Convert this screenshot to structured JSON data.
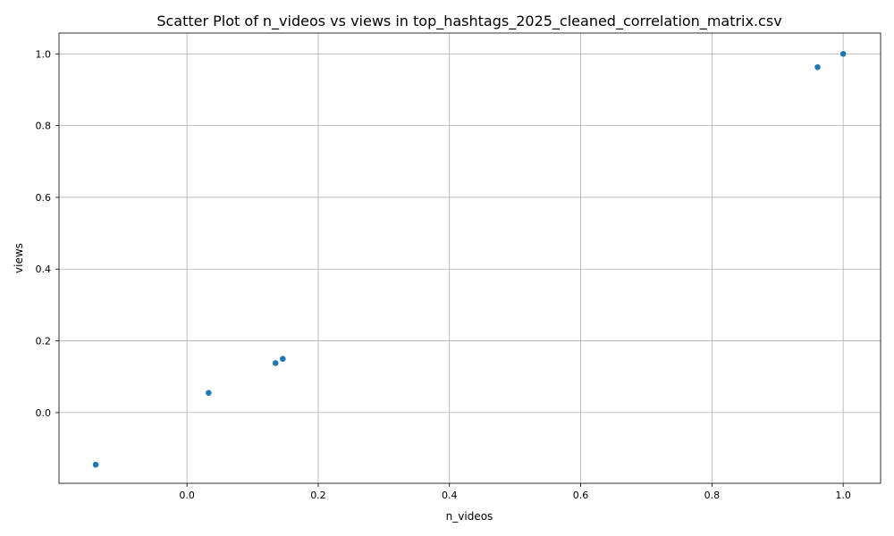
{
  "chart_data": {
    "type": "scatter",
    "title": "Scatter Plot of n_videos vs views in top_hashtags_2025_cleaned_correlation_matrix.csv",
    "xlabel": "n_videos",
    "ylabel": "views",
    "xlim": [
      -0.195,
      1.057
    ],
    "ylim": [
      -0.197,
      1.058
    ],
    "xticks": [
      0.0,
      0.2,
      0.4,
      0.6,
      0.8,
      1.0
    ],
    "xtick_labels": [
      "0.0",
      "0.2",
      "0.4",
      "0.6",
      "0.8",
      "1.0"
    ],
    "yticks": [
      0.0,
      0.2,
      0.4,
      0.6,
      0.8,
      1.0
    ],
    "ytick_labels": [
      "0.0",
      "0.2",
      "0.4",
      "0.6",
      "0.8",
      "1.0"
    ],
    "grid": true,
    "marker_color": "#1f77b4",
    "points": [
      {
        "x": -0.139,
        "y": -0.145
      },
      {
        "x": 0.033,
        "y": 0.055
      },
      {
        "x": 0.135,
        "y": 0.138
      },
      {
        "x": 0.146,
        "y": 0.15
      },
      {
        "x": 0.961,
        "y": 0.963
      },
      {
        "x": 1.0,
        "y": 1.0
      }
    ]
  }
}
